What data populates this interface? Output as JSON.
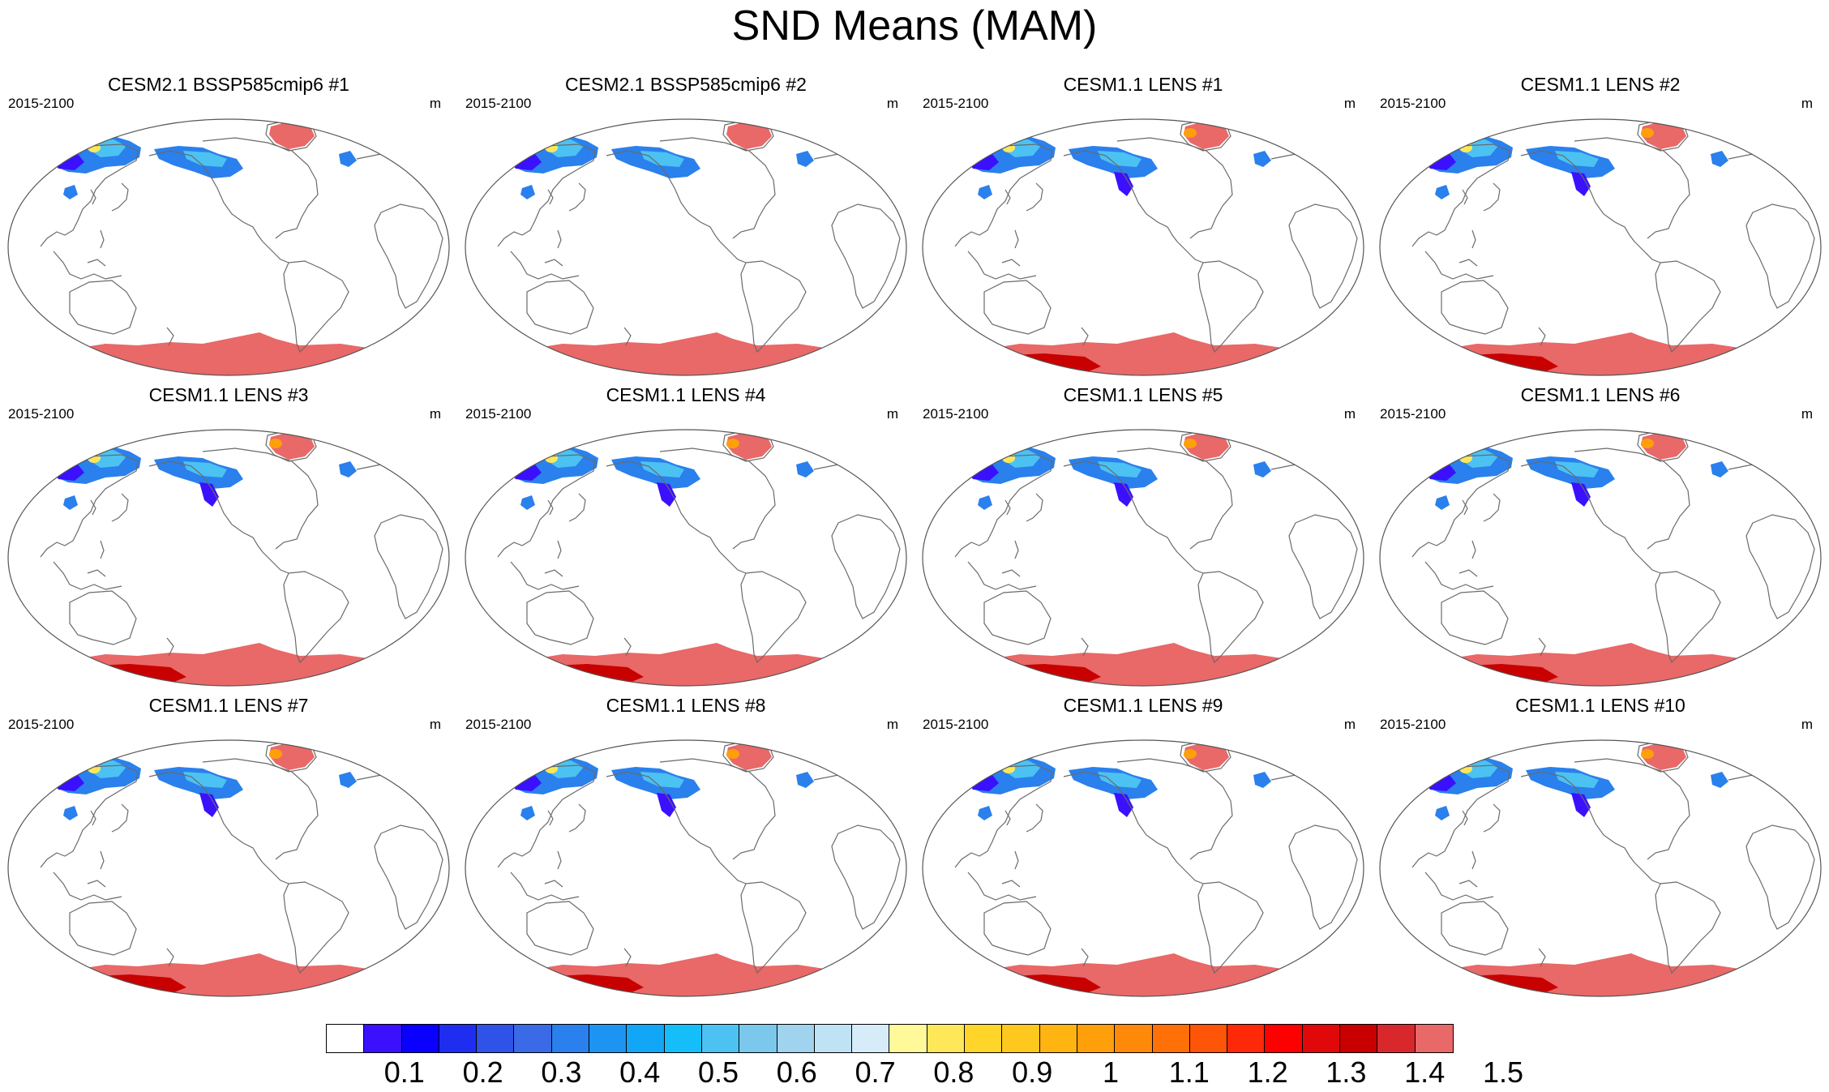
{
  "title": "SND Means (MAM)",
  "panels": [
    {
      "title": "CESM2.1 BSSP585cmip6 #1",
      "left": "2015-2100",
      "right": "m",
      "antarctic_peak": false
    },
    {
      "title": "CESM2.1 BSSP585cmip6 #2",
      "left": "2015-2100",
      "right": "m",
      "antarctic_peak": false
    },
    {
      "title": "CESM1.1 LENS #1",
      "left": "2015-2100",
      "right": "m",
      "antarctic_peak": true
    },
    {
      "title": "CESM1.1 LENS #2",
      "left": "2015-2100",
      "right": "m",
      "antarctic_peak": true
    },
    {
      "title": "CESM1.1 LENS #3",
      "left": "2015-2100",
      "right": "m",
      "antarctic_peak": true
    },
    {
      "title": "CESM1.1 LENS #4",
      "left": "2015-2100",
      "right": "m",
      "antarctic_peak": true
    },
    {
      "title": "CESM1.1 LENS #5",
      "left": "2015-2100",
      "right": "m",
      "antarctic_peak": true
    },
    {
      "title": "CESM1.1 LENS #6",
      "left": "2015-2100",
      "right": "m",
      "antarctic_peak": true
    },
    {
      "title": "CESM1.1 LENS #7",
      "left": "2015-2100",
      "right": "m",
      "antarctic_peak": true
    },
    {
      "title": "CESM1.1 LENS #8",
      "left": "2015-2100",
      "right": "m",
      "antarctic_peak": true
    },
    {
      "title": "CESM1.1 LENS #9",
      "left": "2015-2100",
      "right": "m",
      "antarctic_peak": true
    },
    {
      "title": "CESM1.1 LENS #10",
      "left": "2015-2100",
      "right": "m",
      "antarctic_peak": true
    }
  ],
  "colorbar": {
    "labels": [
      "0.1",
      "0.2",
      "0.3",
      "0.4",
      "0.5",
      "0.6",
      "0.7",
      "0.8",
      "0.9",
      "1",
      "1.1",
      "1.2",
      "1.3",
      "1.4",
      "1.5"
    ],
    "colors": [
      "#ffffff",
      "#3a10ff",
      "#0a00ff",
      "#1f2df0",
      "#2f52e8",
      "#3a6ae6",
      "#2a80ec",
      "#1e94f2",
      "#12a6f6",
      "#14bff9",
      "#4cc2f2",
      "#7cc8ec",
      "#a0d3ee",
      "#bfe2f4",
      "#d6ecf8",
      "#fff99a",
      "#ffe75a",
      "#ffd52a",
      "#ffc81e",
      "#ffb412",
      "#ff9f0a",
      "#ff8a0a",
      "#ff7008",
      "#ff5508",
      "#ff2808",
      "#ff0000",
      "#e00808",
      "#c80000",
      "#d8282c",
      "#e96868"
    ]
  },
  "legend_colors": {
    "lowest": "#3a10ff",
    "blue": "#2a80ec",
    "light_blue": "#4cc2f2",
    "yellow": "#ffe75a",
    "orange": "#ff9f0a",
    "red": "#ff0000",
    "dark_red": "#c80000",
    "max_pink": "#e96868"
  }
}
